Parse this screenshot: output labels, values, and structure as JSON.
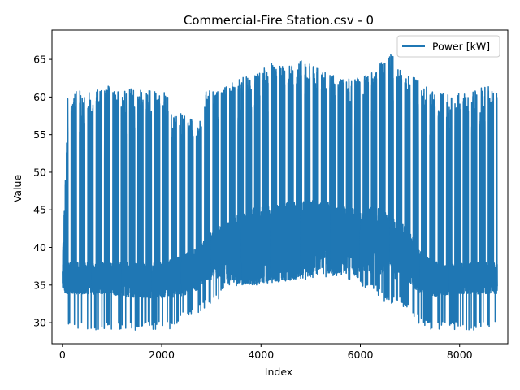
{
  "chart_data": {
    "type": "line",
    "title": "Commercial-Fire Station.csv - 0",
    "xlabel": "Index",
    "ylabel": "Value",
    "xlim": [
      -210,
      8970
    ],
    "ylim": [
      27.2,
      68.9
    ],
    "xticks": [
      0,
      2000,
      4000,
      6000,
      8000
    ],
    "yticks": [
      30,
      35,
      40,
      45,
      50,
      55,
      60,
      65
    ],
    "x_count": 8760,
    "legend": "upper right",
    "grid": false,
    "series": [
      {
        "name": "Power [kW]",
        "color": "#1f77b4",
        "envelope": {
          "x": [
            0,
            120,
            300,
            600,
            900,
            1200,
            1500,
            1800,
            2100,
            2200,
            2400,
            2600,
            2800,
            2900,
            3100,
            3300,
            3600,
            3900,
            4200,
            4500,
            4800,
            5100,
            5400,
            5700,
            6000,
            6300,
            6600,
            6750,
            7000,
            7200,
            7400,
            7600,
            7900,
            8200,
            8500,
            8759
          ],
          "peak": [
            38.0,
            62.0,
            61.0,
            60.6,
            61.5,
            60.8,
            61.3,
            61.0,
            60.6,
            58.0,
            58.0,
            57.0,
            57.0,
            61.0,
            61.0,
            61.5,
            62.5,
            63.5,
            64.5,
            64.0,
            65.0,
            64.0,
            63.0,
            62.5,
            62.5,
            63.5,
            67.0,
            64.0,
            63.5,
            62.0,
            61.0,
            60.5,
            60.5,
            60.5,
            62.0,
            60.5
          ],
          "base_low": [
            34.0,
            33.8,
            33.8,
            33.8,
            33.8,
            33.5,
            33.3,
            33.3,
            33.2,
            33.2,
            33.5,
            34.0,
            34.5,
            35.5,
            36.0,
            35.5,
            35.0,
            35.0,
            35.3,
            35.5,
            35.8,
            36.5,
            36.5,
            36.5,
            36.5,
            36.5,
            35.8,
            35.8,
            35.0,
            34.0,
            33.5,
            33.5,
            33.8,
            33.8,
            33.8,
            33.8
          ],
          "base_high": [
            38.2,
            38.0,
            38.0,
            38.0,
            38.0,
            38.0,
            38.0,
            38.0,
            38.0,
            38.5,
            39.0,
            39.5,
            40.5,
            41.5,
            42.5,
            43.5,
            44.5,
            45.5,
            45.5,
            46.0,
            46.0,
            46.5,
            46.0,
            45.5,
            45.0,
            45.5,
            44.5,
            44.0,
            42.0,
            39.5,
            38.5,
            38.0,
            38.0,
            38.0,
            38.0,
            38.0
          ],
          "trough": [
            29.0,
            29.0,
            29.0,
            29.0,
            29.0,
            29.0,
            29.0,
            29.0,
            29.0,
            29.0,
            30.5,
            31.0,
            31.5,
            32.0,
            32.5,
            34.5,
            35.0,
            35.0,
            35.0,
            35.0,
            35.5,
            36.0,
            36.0,
            36.0,
            35.0,
            34.0,
            32.0,
            32.5,
            31.5,
            29.5,
            29.0,
            29.0,
            29.0,
            29.0,
            29.0,
            29.0
          ]
        }
      }
    ]
  }
}
